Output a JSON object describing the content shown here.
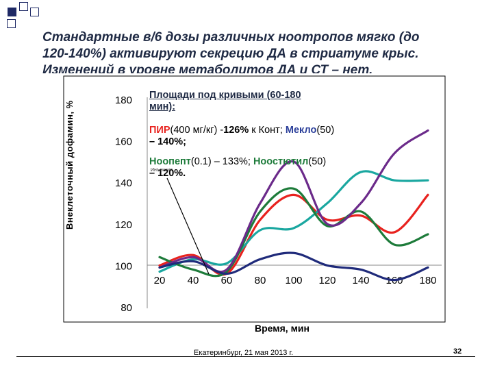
{
  "slide": {
    "title_lines": [
      "Стандартные в/6 дозы различных ноотропов мягко (до",
      "120-140%) активируют секрецию ДА в стриатуме крыс.",
      "Изменений в уровне метаболитов ДА и СТ – нет."
    ],
    "footer": "Екатеринбург, 21 мая 2013 г.",
    "page_number": "32",
    "deco_colors": [
      "#1f2a66",
      "#ffffff"
    ]
  },
  "annotations": {
    "area_heading_line1": "Площади под кривыми (60-180",
    "area_heading_line2": "мин):",
    "pir_name": "ПИР",
    "pir_dose": "(400 мг/кг) -",
    "pir_value": "126%",
    "pir_konst": " к Конт; ",
    "meklo_name": "Мекло",
    "meklo_dose": "(50)",
    "meklo_value": "– 140%;",
    "noopept_name": "Ноопепт",
    "noopept_dose": "(0.1) – 133%; ",
    "noog_name": "Ноостютил",
    "noog_dose": "(50)",
    "noog_value": "– 120%.",
    "inject_label": "Инъекция",
    "colors": {
      "pir": "#e8221e",
      "meklo": "#2b3f9a",
      "noopept": "#1d7b3a",
      "noog": "#1aa7a0"
    }
  },
  "chart_data": {
    "type": "line",
    "title": "",
    "xlabel": "Время, мин",
    "ylabel": "Внеклеточный дофамин, %",
    "x_ticks": [
      20,
      40,
      60,
      80,
      100,
      120,
      140,
      160,
      180
    ],
    "y_ticks": [
      80,
      100,
      120,
      140,
      160,
      180
    ],
    "xlim": [
      20,
      180
    ],
    "ylim": [
      80,
      180
    ],
    "x": [
      20,
      40,
      60,
      80,
      100,
      120,
      140,
      160,
      180
    ],
    "series": [
      {
        "color": "#e8221e",
        "values": [
          100,
          105,
          96,
          122,
          134,
          122,
          124,
          116,
          134
        ]
      },
      {
        "color": "#1aa7a0",
        "values": [
          97,
          103,
          101,
          117,
          118,
          130,
          145,
          141,
          141
        ]
      },
      {
        "color": "#1d7b3a",
        "values": [
          104,
          98,
          97,
          126,
          137,
          119,
          126,
          110,
          115
        ]
      },
      {
        "color": "#6b2a8a",
        "values": [
          99,
          104,
          98,
          130,
          150,
          120,
          130,
          154,
          165
        ]
      },
      {
        "color": "#1f2a7a",
        "values": [
          99,
          102,
          96,
          103,
          106,
          100,
          98,
          93,
          99
        ]
      }
    ]
  }
}
